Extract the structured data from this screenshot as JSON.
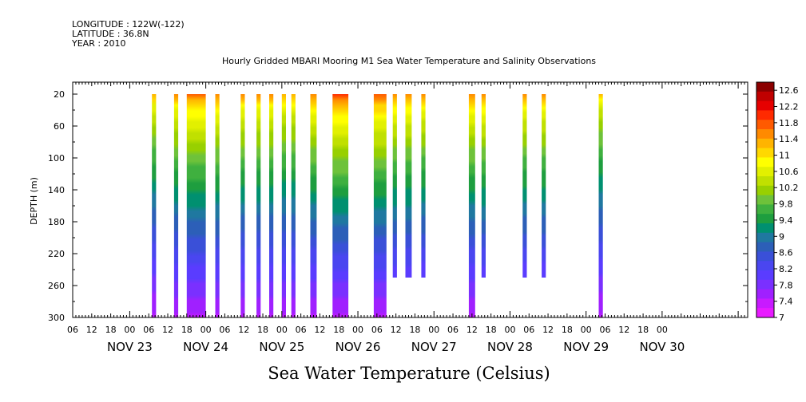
{
  "header": {
    "longitude": "LONGITUDE : 122W(-122)",
    "latitude": "LATITUDE : 36.8N",
    "year": "YEAR : 2010"
  },
  "chart_data": {
    "type": "heatmap",
    "title": "Hourly Gridded MBARI Mooring M1 Sea Water Temperature and Salinity Observations",
    "xlabel": "Sea Water Temperature (Celsius)",
    "ylabel": "DEPTH (m)",
    "x_range_hours": [
      -18,
      195
    ],
    "y_range": [
      5,
      300
    ],
    "y_ticks": [
      20,
      60,
      100,
      140,
      180,
      220,
      260,
      300
    ],
    "x_hour_ticks": [
      "06",
      "12",
      "18",
      "00",
      "06",
      "12",
      "18",
      "00",
      "06",
      "12",
      "18",
      "00",
      "06",
      "12",
      "18",
      "00",
      "06",
      "12",
      "18",
      "00",
      "06",
      "12",
      "18",
      "00",
      "06",
      "12",
      "18",
      "00",
      "06",
      "12",
      "18",
      "00"
    ],
    "day_labels": [
      {
        "label": "NOV 23",
        "hour": 0
      },
      {
        "label": "NOV 24",
        "hour": 24
      },
      {
        "label": "NOV 25",
        "hour": 48
      },
      {
        "label": "NOV 26",
        "hour": 72
      },
      {
        "label": "NOV 27",
        "hour": 96
      },
      {
        "label": "NOV 28",
        "hour": 120
      },
      {
        "label": "NOV 29",
        "hour": 144
      },
      {
        "label": "NOV 30",
        "hour": 168
      }
    ],
    "colorbar": {
      "min": 7,
      "max": 12.8,
      "labels": [
        "12.6",
        "12.2",
        "11.8",
        "11.4",
        "11",
        "10.6",
        "10.2",
        "9.8",
        "9.4",
        "9",
        "8.6",
        "8.2",
        "7.8",
        "7.4",
        "7"
      ],
      "colors": [
        "#8b0000",
        "#c00000",
        "#e60000",
        "#ff2a00",
        "#ff5a00",
        "#ff8a00",
        "#ffb400",
        "#ffd800",
        "#ffff00",
        "#e2f000",
        "#c0e000",
        "#98d000",
        "#6ec23a",
        "#3fb03f",
        "#1e9e3f",
        "#009070",
        "#1f78a0",
        "#2c5fb8",
        "#3a50d8",
        "#4a46f0",
        "#5a3cff",
        "#7a30ff",
        "#a020ff",
        "#c81aff",
        "#e81aff"
      ]
    },
    "series": [
      {
        "start_hour": 7,
        "duration": 1.3,
        "max_depth": 300,
        "surface_temp": 11.3
      },
      {
        "start_hour": 14,
        "duration": 1.3,
        "max_depth": 300,
        "surface_temp": 11.5
      },
      {
        "start_hour": 18,
        "duration": 6,
        "max_depth": 300,
        "surface_temp": 11.7
      },
      {
        "start_hour": 27,
        "duration": 1.3,
        "max_depth": 300,
        "surface_temp": 11.6
      },
      {
        "start_hour": 35,
        "duration": 1.3,
        "max_depth": 300,
        "surface_temp": 11.5
      },
      {
        "start_hour": 40,
        "duration": 1.3,
        "max_depth": 300,
        "surface_temp": 11.5
      },
      {
        "start_hour": 44,
        "duration": 1.3,
        "max_depth": 300,
        "surface_temp": 11.5
      },
      {
        "start_hour": 48,
        "duration": 1.3,
        "max_depth": 300,
        "surface_temp": 11.4
      },
      {
        "start_hour": 51,
        "duration": 1.3,
        "max_depth": 300,
        "surface_temp": 11.4
      },
      {
        "start_hour": 57,
        "duration": 2,
        "max_depth": 300,
        "surface_temp": 11.6
      },
      {
        "start_hour": 64,
        "duration": 5,
        "max_depth": 300,
        "surface_temp": 11.9
      },
      {
        "start_hour": 77,
        "duration": 4,
        "max_depth": 300,
        "surface_temp": 11.8
      },
      {
        "start_hour": 83,
        "duration": 1.3,
        "max_depth": 250,
        "surface_temp": 11.6
      },
      {
        "start_hour": 87,
        "duration": 2,
        "max_depth": 250,
        "surface_temp": 11.6
      },
      {
        "start_hour": 92,
        "duration": 1.3,
        "max_depth": 250,
        "surface_temp": 11.5
      },
      {
        "start_hour": 107,
        "duration": 2,
        "max_depth": 300,
        "surface_temp": 11.6
      },
      {
        "start_hour": 111,
        "duration": 1.3,
        "max_depth": 250,
        "surface_temp": 11.6
      },
      {
        "start_hour": 124,
        "duration": 1.3,
        "max_depth": 250,
        "surface_temp": 11.5
      },
      {
        "start_hour": 130,
        "duration": 1.3,
        "max_depth": 250,
        "surface_temp": 11.5
      },
      {
        "start_hour": 148,
        "duration": 1.3,
        "max_depth": 300,
        "surface_temp": 11.2
      }
    ]
  }
}
